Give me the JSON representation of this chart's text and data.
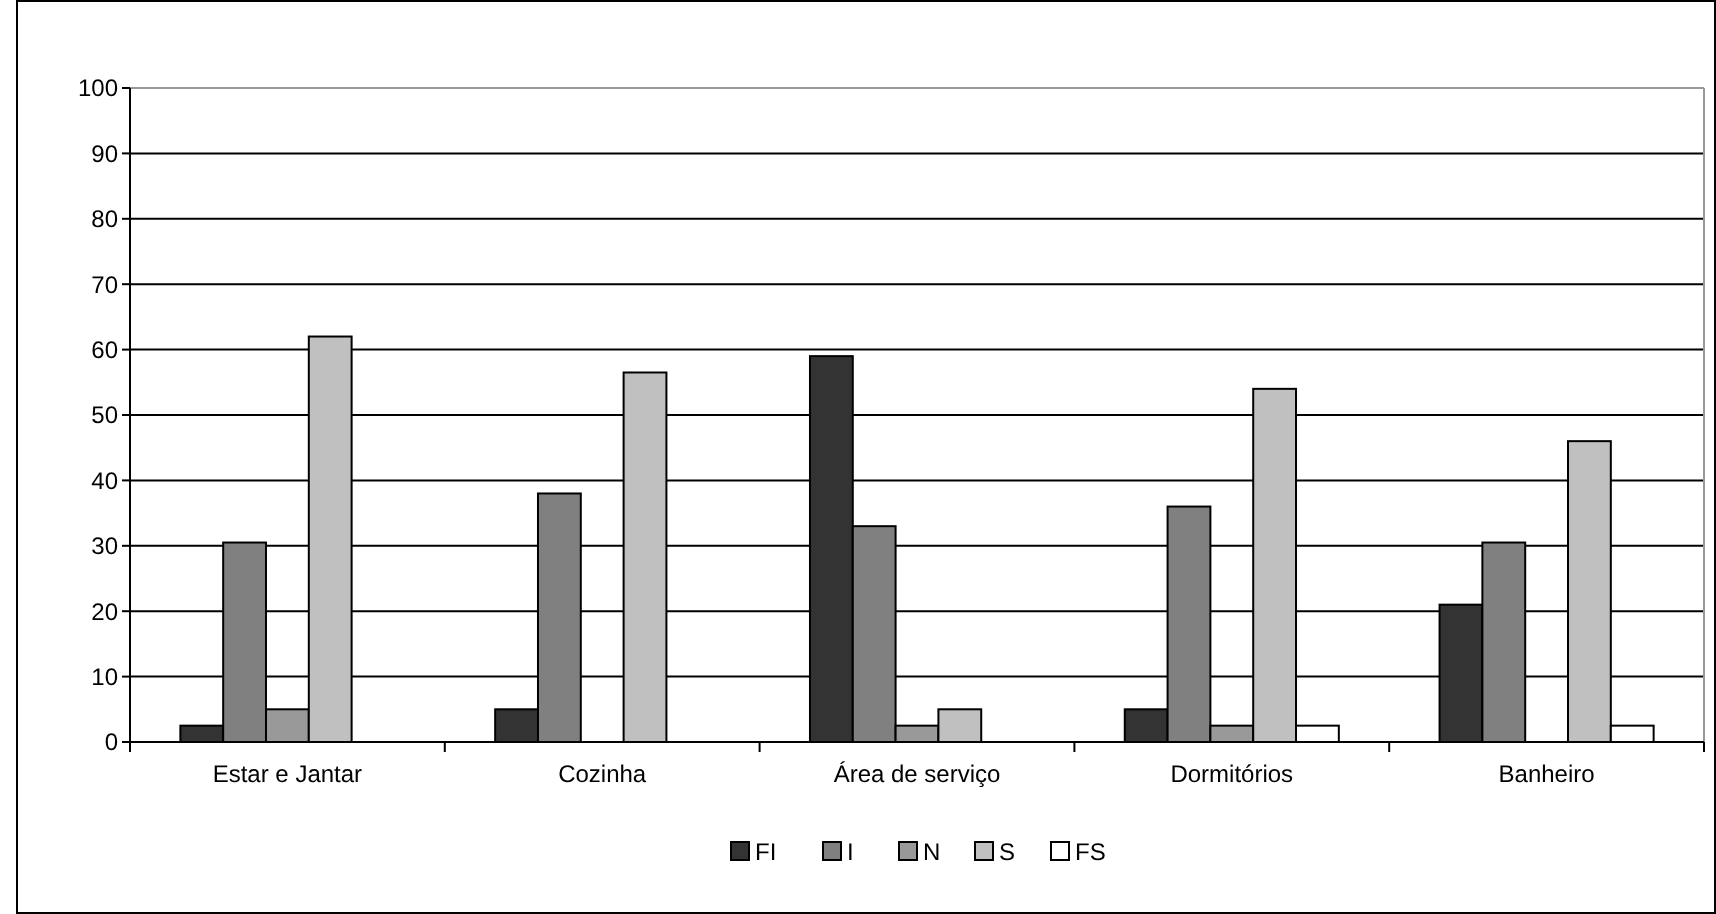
{
  "chart_data": {
    "type": "bar",
    "categories": [
      "Estar e Jantar",
      "Cozinha",
      "Área de serviço",
      "Dormitórios",
      "Banheiro"
    ],
    "series": [
      {
        "name": "FI",
        "color": "#333333",
        "values": [
          2.5,
          5,
          59,
          5,
          21
        ]
      },
      {
        "name": "I",
        "color": "#808080",
        "values": [
          30.5,
          38,
          33,
          36,
          30.5
        ]
      },
      {
        "name": "N",
        "color": "#999999",
        "values": [
          5,
          0,
          2.5,
          2.5,
          0
        ]
      },
      {
        "name": "S",
        "color": "#c0c0c0",
        "values": [
          62,
          56.5,
          5,
          54,
          46
        ]
      },
      {
        "name": "FS",
        "color": "#ffffff",
        "values": [
          0,
          0,
          0,
          2.5,
          2.5
        ]
      }
    ],
    "ylim": [
      0,
      100
    ],
    "yticks": [
      0,
      10,
      20,
      30,
      40,
      50,
      60,
      70,
      80,
      90,
      100
    ],
    "grid": "y",
    "legend": "bottom"
  }
}
